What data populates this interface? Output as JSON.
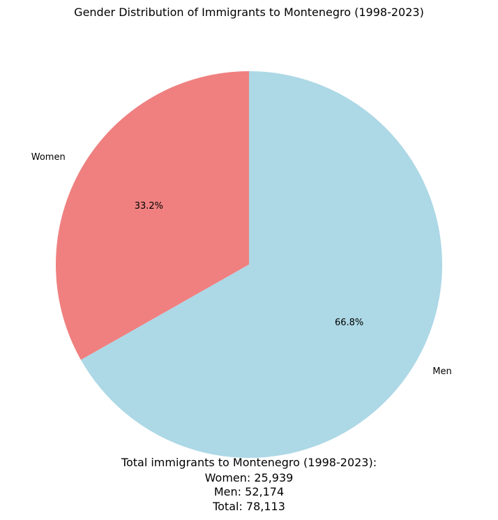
{
  "chart_data": {
    "type": "pie",
    "title": "Gender Distribution of Immigrants to Montenegro (1998-2023)",
    "slices": [
      {
        "label": "Women",
        "value": 25939,
        "percent_label": "33.2%",
        "color": "#f08080"
      },
      {
        "label": "Men",
        "value": 52174,
        "percent_label": "66.8%",
        "color": "#add8e6"
      }
    ],
    "start_angle_deg": 90,
    "direction": "counterclockwise",
    "summary": [
      "Total immigrants to Montenegro (1998-2023):",
      "Women: 25,939",
      "Men: 52,174",
      "Total: 78,113"
    ]
  }
}
